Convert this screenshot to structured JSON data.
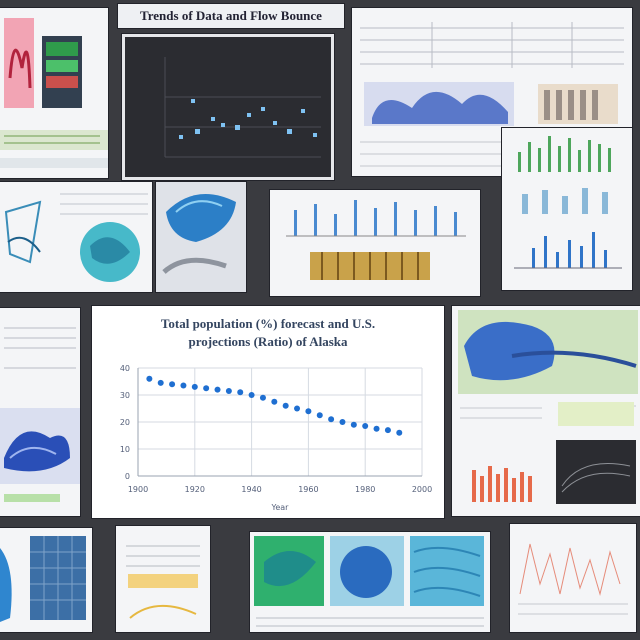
{
  "banner": {
    "title": "Trends of Data and Flow Bounce"
  },
  "main_chart": {
    "title_line1": "Total population (%) forecast and U.S.",
    "title_line2": "projections (Ratio) of Alaska"
  },
  "colors": {
    "point": "#1f6fd1",
    "background": "#3a3b40",
    "accent_blue": "#2f74c8"
  },
  "chart_data": {
    "type": "scatter",
    "title": "Total population (%) forecast and U.S. projections (Ratio) of Alaska",
    "xlabel": "Year",
    "ylabel": "",
    "x_ticks": [
      "1900",
      "1920",
      "1940",
      "1960",
      "1980",
      "2000"
    ],
    "y_ticks": [
      "0",
      "10",
      "20",
      "30",
      "40"
    ],
    "ylim": [
      0,
      40
    ],
    "grid": true,
    "series": [
      {
        "x": [
          1904,
          1908,
          1912,
          1916,
          1920,
          1924,
          1928,
          1932,
          1936,
          1940,
          1944,
          1948,
          1952,
          1956,
          1960,
          1964,
          1968,
          1972,
          1976,
          1980,
          1984,
          1988,
          1992
        ],
        "y": [
          36,
          34.5,
          34,
          33.5,
          33,
          32.5,
          32,
          31.5,
          31,
          30,
          29,
          27.5,
          26,
          25,
          24,
          22.5,
          21,
          20,
          19,
          18.5,
          17.5,
          17,
          16
        ]
      }
    ]
  }
}
